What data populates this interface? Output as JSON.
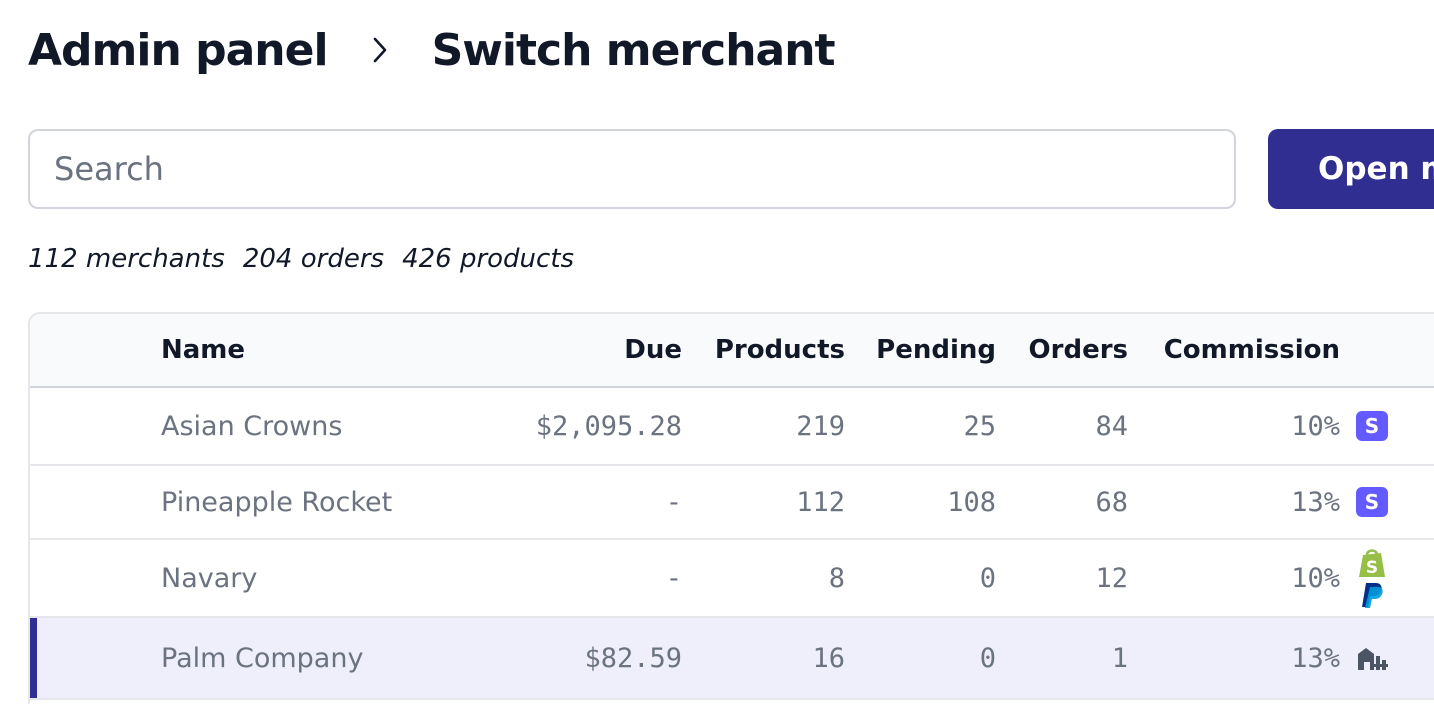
{
  "breadcrumb": {
    "root": "Admin panel",
    "current": "Switch merchant"
  },
  "search": {
    "placeholder": "Search",
    "value": ""
  },
  "open_button_label": "Open m",
  "stats": {
    "merchants": "112 merchants",
    "orders": "204 orders",
    "products": "426 products"
  },
  "table": {
    "headers": {
      "name": "Name",
      "due": "Due",
      "products": "Products",
      "pending": "Pending",
      "orders": "Orders",
      "commission": "Commission"
    },
    "rows": [
      {
        "name": "Asian Crowns",
        "due": "$2,095.28",
        "products": "219",
        "pending": "25",
        "orders": "84",
        "commission": "10%",
        "icons": [
          "stripe-icon"
        ],
        "selected": false
      },
      {
        "name": "Pineapple Rocket",
        "due": "-",
        "products": "112",
        "pending": "108",
        "orders": "68",
        "commission": "13%",
        "icons": [
          "stripe-icon"
        ],
        "selected": false
      },
      {
        "name": "Navary",
        "due": "-",
        "products": "8",
        "pending": "0",
        "orders": "12",
        "commission": "10%",
        "icons": [
          "shopify-icon",
          "paypal-icon"
        ],
        "selected": false
      },
      {
        "name": "Palm Company",
        "due": "$82.59",
        "products": "16",
        "pending": "0",
        "orders": "1",
        "commission": "13%",
        "icons": [
          "store-icon"
        ],
        "selected": true
      }
    ]
  },
  "colors": {
    "accent": "#312e91",
    "stripe": "#635bff",
    "shopify": "#95bf47",
    "paypal": "#003087",
    "selected_row": "#eeeffa",
    "muted_text": "#6b7280"
  }
}
